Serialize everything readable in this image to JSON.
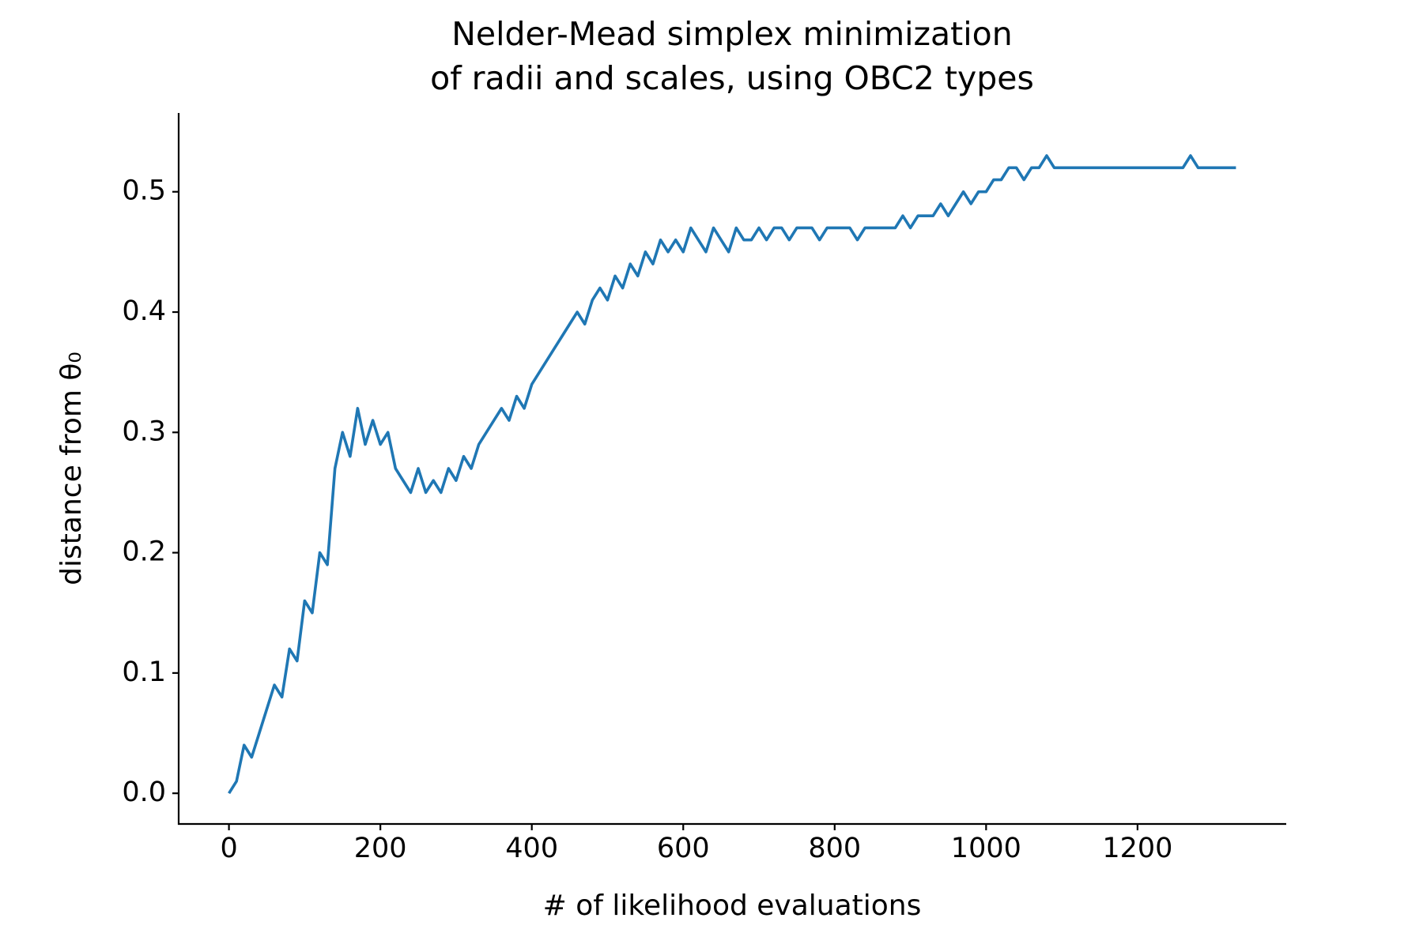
{
  "chart_data": {
    "type": "line",
    "title": [
      "Nelder-Mead simplex minimization",
      "of radii and scales, using OBC2 types"
    ],
    "x_label": "# of likelihood evaluations",
    "y_label": "distance from θ₀",
    "xlim": [
      -66.4,
      1396.4
    ],
    "ylim": [
      -0.0255,
      0.5655
    ],
    "xticks": [
      0,
      200,
      400,
      600,
      800,
      1000,
      1200
    ],
    "yticks": [
      {
        "value": 0,
        "label": "0.0"
      },
      0.1,
      0.2,
      0.3,
      0.4,
      0.5
    ],
    "grid": false,
    "x": [
      0,
      10,
      20,
      30,
      40,
      50,
      60,
      70,
      80,
      90,
      100,
      110,
      120,
      130,
      140,
      150,
      160,
      170,
      180,
      190,
      200,
      210,
      220,
      230,
      240,
      250,
      260,
      270,
      280,
      290,
      300,
      310,
      320,
      330,
      340,
      350,
      360,
      370,
      380,
      390,
      400,
      410,
      420,
      430,
      440,
      450,
      460,
      470,
      480,
      490,
      500,
      510,
      520,
      530,
      540,
      550,
      560,
      570,
      580,
      590,
      600,
      610,
      620,
      630,
      640,
      650,
      660,
      670,
      680,
      690,
      700,
      710,
      720,
      730,
      740,
      750,
      760,
      770,
      780,
      790,
      800,
      810,
      820,
      830,
      840,
      850,
      860,
      870,
      880,
      890,
      900,
      910,
      920,
      930,
      940,
      950,
      960,
      970,
      980,
      990,
      1000,
      1010,
      1020,
      1030,
      1040,
      1050,
      1060,
      1070,
      1080,
      1090,
      1100,
      1110,
      1120,
      1130,
      1140,
      1150,
      1160,
      1170,
      1180,
      1190,
      1200,
      1210,
      1220,
      1230,
      1240,
      1250,
      1260,
      1270,
      1280,
      1290,
      1300,
      1310,
      1320,
      1330
    ],
    "series": [
      {
        "color": "#1f77b4",
        "values": [
          0.0,
          0.01,
          0.04,
          0.03,
          0.05,
          0.07,
          0.09,
          0.08,
          0.12,
          0.11,
          0.16,
          0.15,
          0.2,
          0.19,
          0.27,
          0.3,
          0.28,
          0.32,
          0.29,
          0.31,
          0.29,
          0.3,
          0.27,
          0.26,
          0.25,
          0.27,
          0.25,
          0.26,
          0.25,
          0.27,
          0.26,
          0.28,
          0.27,
          0.29,
          0.3,
          0.31,
          0.32,
          0.31,
          0.33,
          0.32,
          0.34,
          0.35,
          0.36,
          0.37,
          0.38,
          0.39,
          0.4,
          0.39,
          0.41,
          0.42,
          0.41,
          0.43,
          0.42,
          0.44,
          0.43,
          0.45,
          0.44,
          0.46,
          0.45,
          0.46,
          0.45,
          0.47,
          0.46,
          0.45,
          0.47,
          0.46,
          0.45,
          0.47,
          0.46,
          0.46,
          0.47,
          0.46,
          0.47,
          0.47,
          0.46,
          0.47,
          0.47,
          0.47,
          0.46,
          0.47,
          0.47,
          0.47,
          0.47,
          0.46,
          0.47,
          0.47,
          0.47,
          0.47,
          0.47,
          0.48,
          0.47,
          0.48,
          0.48,
          0.48,
          0.49,
          0.48,
          0.49,
          0.5,
          0.49,
          0.5,
          0.5,
          0.51,
          0.51,
          0.52,
          0.52,
          0.51,
          0.52,
          0.52,
          0.53,
          0.52,
          0.52,
          0.52,
          0.52,
          0.52,
          0.52,
          0.52,
          0.52,
          0.52,
          0.52,
          0.52,
          0.52,
          0.52,
          0.52,
          0.52,
          0.52,
          0.52,
          0.52,
          0.53,
          0.52,
          0.52,
          0.52,
          0.52,
          0.52,
          0.52
        ]
      }
    ]
  }
}
